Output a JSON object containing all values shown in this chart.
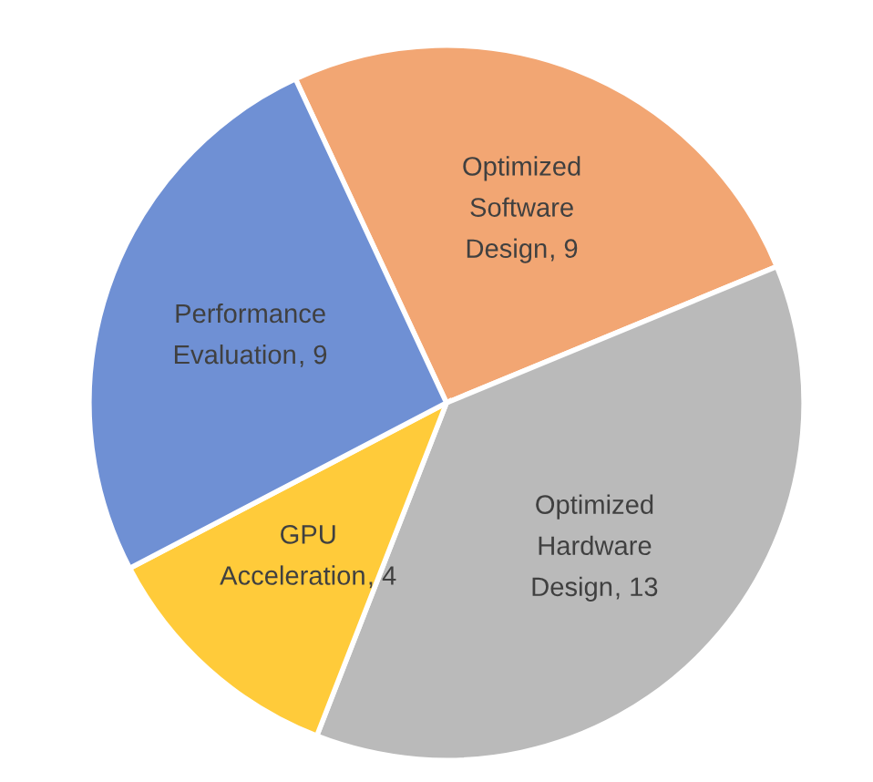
{
  "chart_data": {
    "type": "pie",
    "categories": [
      "Optimized Software Design",
      "Optimized Hardware Design",
      "GPU Acceleration",
      "Performance Evaluation"
    ],
    "values": [
      9,
      13,
      4,
      9
    ],
    "colors": [
      "#f2a673",
      "#bababa",
      "#ffcb3a",
      "#6f90d4"
    ],
    "value_labels": [
      ", 9",
      ", 13",
      ", 4",
      ", 9"
    ]
  }
}
